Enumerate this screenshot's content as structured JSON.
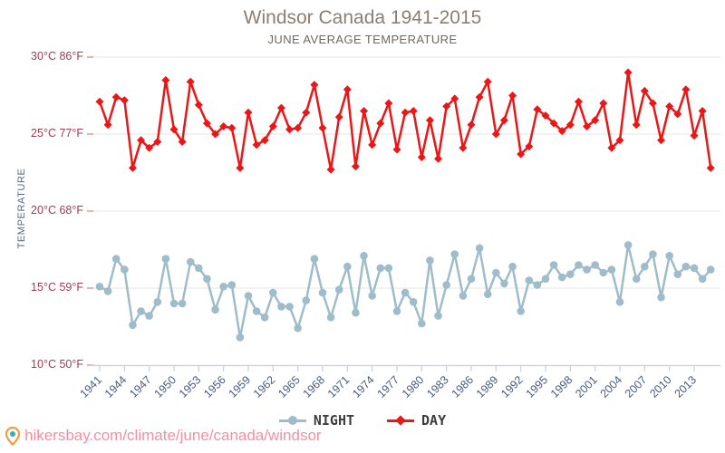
{
  "title": "Windsor Canada 1941-2015",
  "subtitle": "JUNE AVERAGE TEMPERATURE",
  "y_axis": {
    "title": "TEMPERATURE",
    "tick_labels": [
      "30°C 86°F",
      "25°C 77°F",
      "20°C 68°F",
      "15°C 59°F",
      "10°C 50°F"
    ],
    "tick_values_c": [
      30,
      25,
      20,
      15,
      10
    ]
  },
  "x_axis": {
    "tick_years": [
      1941,
      1944,
      1947,
      1950,
      1953,
      1956,
      1959,
      1962,
      1965,
      1968,
      1971,
      1974,
      1977,
      1980,
      1983,
      1986,
      1989,
      1992,
      1995,
      1998,
      2001,
      2004,
      2007,
      2010,
      2013
    ]
  },
  "legend": {
    "night_label": "NIGHT",
    "day_label": "DAY"
  },
  "footer": {
    "url": "hikersbay.com/climate/june/canada/windsor"
  },
  "colors": {
    "night": "#9fbcca",
    "day": "#ed1515",
    "grid": "#e4e4e4",
    "axis_line": "#c3d0e6",
    "x_tick_label": "#4a5b7d",
    "y_tick_label": "#a23b52",
    "y_axis_tick": "#d98a8a",
    "title_text": "#8b7e71",
    "footer_link": "#fb8ca2",
    "pin_orange": "#f49b42",
    "pin_teal": "#33b3ab"
  },
  "chart_data": {
    "type": "line",
    "title": "Windsor Canada 1941-2015",
    "subtitle": "JUNE AVERAGE TEMPERATURE",
    "xlabel": "",
    "ylabel": "TEMPERATURE",
    "ylim": [
      10,
      30
    ],
    "grid": "horizontal",
    "legend_position": "bottom",
    "x": [
      1941,
      1942,
      1943,
      1944,
      1945,
      1946,
      1947,
      1948,
      1949,
      1950,
      1951,
      1952,
      1953,
      1954,
      1955,
      1956,
      1957,
      1958,
      1959,
      1960,
      1961,
      1962,
      1963,
      1964,
      1965,
      1966,
      1967,
      1968,
      1969,
      1970,
      1971,
      1972,
      1973,
      1974,
      1975,
      1976,
      1977,
      1978,
      1979,
      1980,
      1981,
      1982,
      1983,
      1984,
      1985,
      1986,
      1987,
      1988,
      1989,
      1990,
      1991,
      1992,
      1993,
      1994,
      1995,
      1996,
      1997,
      1998,
      1999,
      2000,
      2001,
      2002,
      2003,
      2004,
      2005,
      2006,
      2007,
      2008,
      2009,
      2010,
      2011,
      2012,
      2013,
      2014,
      2015
    ],
    "series": [
      {
        "name": "NIGHT",
        "color": "#9fbcca",
        "marker": "circle",
        "unit": "°C",
        "values": [
          15.1,
          14.8,
          16.9,
          16.2,
          12.6,
          13.5,
          13.2,
          14.1,
          16.9,
          14.0,
          14.0,
          16.7,
          16.3,
          15.6,
          13.6,
          15.1,
          15.2,
          11.8,
          14.5,
          13.5,
          13.1,
          14.7,
          13.8,
          13.8,
          12.4,
          14.2,
          16.9,
          14.7,
          13.1,
          14.9,
          16.4,
          13.4,
          17.1,
          14.5,
          16.3,
          16.3,
          13.5,
          14.7,
          14.1,
          12.7,
          16.8,
          13.2,
          15.2,
          17.2,
          14.5,
          15.6,
          17.6,
          14.6,
          16.0,
          15.3,
          16.4,
          13.5,
          15.5,
          15.2,
          15.6,
          16.5,
          15.7,
          15.9,
          16.5,
          16.2,
          16.5,
          16.0,
          16.2,
          14.1,
          17.8,
          15.6,
          16.4,
          17.2,
          14.4,
          17.1,
          15.9,
          16.4,
          16.3,
          15.6,
          16.2
        ]
      },
      {
        "name": "DAY",
        "color": "#ed1515",
        "marker": "diamond",
        "unit": "°C",
        "values": [
          27.1,
          25.6,
          27.4,
          27.2,
          22.8,
          24.6,
          24.1,
          24.5,
          28.5,
          25.3,
          24.5,
          28.4,
          26.9,
          25.7,
          25.0,
          25.5,
          25.4,
          22.8,
          26.4,
          24.3,
          24.6,
          25.5,
          26.7,
          25.3,
          25.4,
          26.4,
          28.2,
          25.4,
          22.7,
          26.1,
          27.9,
          22.9,
          26.5,
          24.3,
          25.7,
          27.0,
          24.0,
          26.4,
          26.5,
          23.5,
          25.9,
          23.4,
          26.8,
          27.3,
          24.1,
          25.6,
          27.4,
          28.4,
          25.0,
          25.9,
          27.5,
          23.7,
          24.2,
          26.6,
          26.2,
          25.7,
          25.2,
          25.6,
          27.1,
          25.5,
          25.9,
          27.0,
          24.1,
          24.6,
          29.0,
          25.6,
          27.8,
          27.0,
          24.6,
          26.8,
          26.3,
          27.9,
          24.9,
          26.5,
          22.8
        ]
      }
    ]
  }
}
